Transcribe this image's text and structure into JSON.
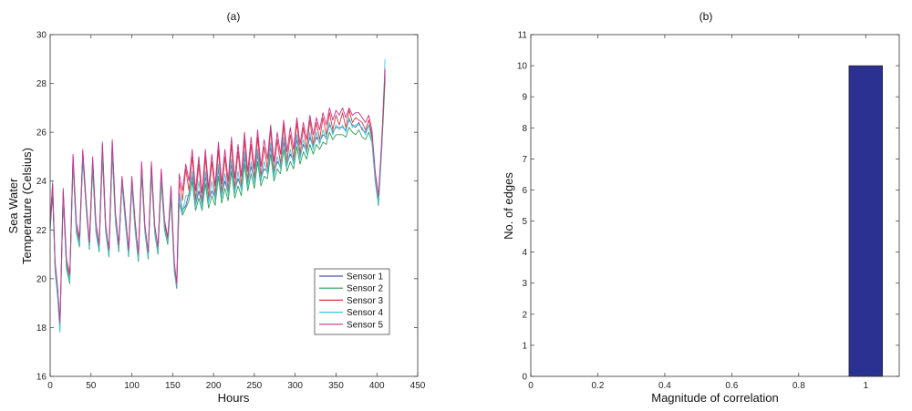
{
  "chart_data": [
    {
      "type": "line",
      "title": "(a)",
      "xlabel": "Hours",
      "ylabel_lines": [
        "Sea Water",
        "Temperature (Celsius)"
      ],
      "xlim": [
        0,
        450
      ],
      "ylim": [
        16,
        30
      ],
      "xticks": [
        0,
        50,
        100,
        150,
        200,
        250,
        300,
        350,
        400,
        450
      ],
      "yticks": [
        16,
        18,
        20,
        22,
        24,
        26,
        28,
        30
      ],
      "legend_position": "bottom-right",
      "x": [
        0,
        3,
        6,
        9,
        12,
        16,
        20,
        24,
        28,
        32,
        36,
        40,
        44,
        48,
        52,
        56,
        60,
        64,
        68,
        72,
        76,
        80,
        84,
        88,
        92,
        96,
        100,
        104,
        108,
        112,
        116,
        120,
        124,
        128,
        132,
        136,
        140,
        144,
        148,
        152,
        155,
        158,
        162,
        166,
        170,
        174,
        178,
        182,
        186,
        190,
        194,
        198,
        202,
        206,
        210,
        214,
        218,
        222,
        226,
        230,
        234,
        238,
        242,
        246,
        250,
        254,
        258,
        262,
        266,
        270,
        274,
        278,
        282,
        286,
        290,
        294,
        298,
        302,
        306,
        310,
        314,
        318,
        322,
        326,
        330,
        334,
        338,
        342,
        346,
        350,
        354,
        358,
        362,
        366,
        370,
        374,
        378,
        382,
        386,
        390,
        394,
        398,
        402,
        406,
        410
      ],
      "series": [
        {
          "name": "Sensor 1",
          "color": "#4a55b0",
          "values": [
            22,
            23.5,
            20.5,
            19.5,
            18,
            23.3,
            20.5,
            20,
            24.8,
            22,
            21.5,
            25,
            23,
            21.3,
            24.7,
            22,
            21.2,
            25.2,
            22,
            21,
            25.3,
            22.5,
            21.2,
            24,
            22.5,
            21,
            24,
            22.2,
            20.8,
            24.5,
            22,
            21,
            24.5,
            22,
            21.1,
            24.2,
            22.2,
            21.5,
            23.5,
            20.5,
            19.8,
            23.5,
            22.8,
            23,
            23.5,
            24.2,
            23,
            23.6,
            23,
            24.2,
            23.2,
            23.6,
            23.3,
            24.5,
            23.4,
            24,
            23.5,
            24.7,
            23.6,
            24.1,
            23.7,
            25,
            23.9,
            24.6,
            24,
            25.1,
            24.1,
            24.5,
            24.4,
            25.4,
            24.3,
            24.8,
            24.6,
            25.6,
            24.7,
            25.1,
            24.8,
            25.7,
            25,
            25.5,
            25.2,
            25.8,
            25.4,
            25.8,
            25.6,
            25.9,
            25.8,
            26.3,
            26,
            26.2,
            26.2,
            26.2,
            26.1,
            26.5,
            26.3,
            26.2,
            26.4,
            26.1,
            26,
            26.3,
            25.8,
            24.2,
            23.2,
            25.5,
            28.3
          ]
        },
        {
          "name": "Sensor 2",
          "color": "#2e9e56",
          "values": [
            22.1,
            23.7,
            20.3,
            19.3,
            17.9,
            23.4,
            20.4,
            19.8,
            24.7,
            21.9,
            21.3,
            24.9,
            22.9,
            21.2,
            24.5,
            21.9,
            21.1,
            25,
            21.9,
            20.9,
            25.1,
            22.3,
            21.1,
            23.9,
            22.3,
            20.9,
            23.8,
            22,
            20.7,
            24.3,
            21.9,
            20.8,
            24.3,
            21.9,
            21,
            24,
            22,
            21.4,
            23.3,
            20.3,
            19.6,
            23.1,
            22.6,
            22.9,
            23.2,
            24,
            22.8,
            23.3,
            22.8,
            23.9,
            22.9,
            23.4,
            23,
            24.2,
            23.1,
            23.7,
            23.2,
            24.4,
            23.3,
            23.8,
            23.4,
            24.7,
            23.6,
            24.3,
            23.7,
            24.8,
            23.8,
            24.2,
            24.1,
            25.1,
            24,
            24.5,
            24.3,
            25.3,
            24.4,
            24.8,
            24.5,
            25.4,
            24.7,
            25.2,
            24.9,
            25.5,
            25.1,
            25.5,
            25.3,
            25.6,
            25.5,
            26,
            25.7,
            25.9,
            25.9,
            25.9,
            25.8,
            26.2,
            26,
            25.9,
            26.1,
            25.8,
            25.7,
            26,
            25.6,
            24,
            23,
            25.3,
            28.1
          ]
        },
        {
          "name": "Sensor 3",
          "color": "#d93a3a",
          "values": [
            22.2,
            23.8,
            20.6,
            19.6,
            18.1,
            23.6,
            20.7,
            20.1,
            25,
            22.2,
            21.6,
            25.2,
            23.1,
            21.4,
            24.9,
            22.2,
            21.3,
            25.5,
            22.1,
            21.1,
            25.6,
            22.6,
            21.3,
            24.1,
            22.6,
            21.1,
            24.1,
            22.3,
            20.9,
            24.7,
            22.1,
            21,
            24.7,
            22.1,
            21.2,
            24.4,
            22.3,
            21.6,
            23.7,
            20.6,
            19.7,
            24,
            23.2,
            24.5,
            23.6,
            25,
            23.2,
            24.7,
            23.1,
            25,
            23.3,
            24.8,
            23.4,
            25.3,
            23.5,
            25,
            23.6,
            25.5,
            23.7,
            25.2,
            23.8,
            25.7,
            24,
            25.5,
            24.1,
            25.8,
            24.2,
            25.4,
            24.5,
            26.1,
            24.4,
            25.7,
            24.7,
            26.3,
            24.8,
            25.9,
            24.9,
            26.4,
            25.1,
            26.2,
            25.3,
            26.5,
            25.5,
            26.4,
            25.7,
            26.6,
            25.9,
            26.8,
            26.1,
            26.7,
            26.3,
            26.8,
            26.2,
            26.9,
            26.4,
            26.6,
            26.5,
            26.4,
            26.1,
            26.5,
            25.9,
            24.3,
            23.3,
            25.6,
            28.5
          ]
        },
        {
          "name": "Sensor 4",
          "color": "#3cc7d6",
          "values": [
            22.2,
            24,
            20.4,
            19.4,
            17.8,
            23.5,
            20.6,
            19.9,
            24.9,
            22,
            21.4,
            25.1,
            23,
            21.3,
            24.8,
            22,
            21.2,
            25.3,
            22,
            21,
            25.4,
            22.4,
            21.2,
            24,
            22.4,
            21,
            24,
            22.1,
            20.8,
            24.6,
            22,
            20.9,
            24.6,
            22,
            21.1,
            24.3,
            22.1,
            21.5,
            23.6,
            20.4,
            19.7,
            23.4,
            22.7,
            23.4,
            23.4,
            24.4,
            23,
            24,
            22.9,
            24.4,
            23.1,
            24,
            23.2,
            24.7,
            23.3,
            24.3,
            23.4,
            24.9,
            23.5,
            24.4,
            23.6,
            25.2,
            23.8,
            24.8,
            23.9,
            25.3,
            24,
            24.8,
            24.3,
            25.6,
            24.2,
            25,
            24.5,
            25.8,
            24.6,
            25.3,
            24.7,
            25.9,
            24.9,
            25.7,
            25.1,
            26,
            25.3,
            26,
            25.5,
            26.1,
            25.7,
            26.4,
            25.9,
            26.3,
            26.1,
            26.3,
            26,
            26.6,
            26.2,
            26.3,
            26.3,
            26.2,
            25.9,
            26.3,
            25.7,
            24.1,
            23.1,
            25.4,
            29
          ]
        },
        {
          "name": "Sensor 5",
          "color": "#cc2f8a",
          "values": [
            22.3,
            23.9,
            20.7,
            19.7,
            18.2,
            23.7,
            20.8,
            20.2,
            25.1,
            22.3,
            21.7,
            25.3,
            23.2,
            21.5,
            25,
            22.3,
            21.4,
            25.6,
            22.2,
            21.2,
            25.7,
            22.7,
            21.4,
            24.2,
            22.7,
            21.2,
            24.2,
            22.4,
            21,
            24.8,
            22.2,
            21.1,
            24.8,
            22.2,
            21.3,
            24.5,
            22.4,
            21.7,
            23.8,
            20.7,
            19.8,
            24.3,
            23.6,
            24.7,
            24,
            25.3,
            23.6,
            25,
            23.5,
            25.3,
            23.7,
            25.1,
            23.8,
            25.6,
            23.9,
            25.3,
            24,
            25.8,
            24.1,
            25.5,
            24.2,
            26,
            24.4,
            25.8,
            24.5,
            26.1,
            24.6,
            25.7,
            24.9,
            26.3,
            24.8,
            26,
            25.1,
            26.5,
            25.2,
            26.2,
            25.3,
            26.6,
            25.5,
            26.4,
            25.7,
            26.7,
            25.9,
            26.6,
            26.1,
            26.8,
            26.3,
            27,
            26.5,
            26.9,
            26.7,
            27,
            26.6,
            27,
            26.7,
            26.8,
            26.8,
            26.6,
            26.4,
            26.7,
            26.1,
            24.4,
            23.4,
            25.7,
            28.6
          ]
        }
      ]
    },
    {
      "type": "bar",
      "title": "(b)",
      "xlabel": "Magnitude of correlation",
      "ylabel": "No. of edges",
      "xlim": [
        0,
        1.1
      ],
      "ylim": [
        0,
        11
      ],
      "xticks": [
        0,
        0.2,
        0.4,
        0.6,
        0.8,
        1
      ],
      "yticks": [
        0,
        1,
        2,
        3,
        4,
        5,
        6,
        7,
        8,
        9,
        10,
        11
      ],
      "bar_color": "#2b3190",
      "bars": [
        {
          "center": 1.0,
          "width": 0.1,
          "value": 10
        }
      ]
    }
  ]
}
